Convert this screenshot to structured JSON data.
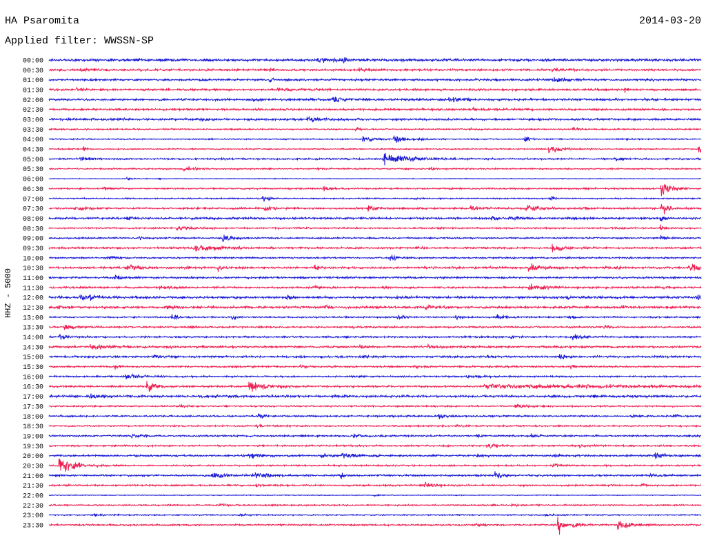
{
  "header": {
    "station": "HA Psaromita",
    "date": "2014-03-20",
    "filter": "Applied filter: WWSSN-SP"
  },
  "channel_label": "HHZ - 5000",
  "colors": {
    "trace_even": "#1a1ad6",
    "trace_odd": "#ee1f52",
    "background": "#ffffff",
    "text": "#000000"
  },
  "chart_data": {
    "type": "line",
    "rows": [
      {
        "time": "00:00",
        "noise": 800,
        "events": [
          [
            3.93,
            1400,
            0.4
          ],
          [
            7.26,
            1100,
            0.3
          ],
          [
            12.34,
            1800,
            1.0
          ],
          [
            13.45,
            1500,
            0.4
          ],
          [
            16.78,
            900,
            0.5
          ]
        ]
      },
      {
        "time": "00:30",
        "noise": 650,
        "events": [
          [
            1.4,
            1100,
            1.0
          ],
          [
            10.12,
            1300,
            0.5
          ],
          [
            14.24,
            1000,
            1.0
          ],
          [
            23.12,
            1000,
            1.0
          ]
        ]
      },
      {
        "time": "01:00",
        "noise": 650,
        "events": [
          [
            6.95,
            1200,
            0.4
          ],
          [
            10.12,
            3200,
            0.15
          ],
          [
            23.12,
            1500,
            1.0
          ],
          [
            27.4,
            1000,
            0.5
          ]
        ]
      },
      {
        "time": "01:30",
        "noise": 650,
        "events": [
          [
            1.24,
            1300,
            0.8
          ],
          [
            10.43,
            1300,
            1.2
          ],
          [
            26.45,
            2500,
            0.15
          ]
        ]
      },
      {
        "time": "02:00",
        "noise": 700,
        "events": [
          [
            9.32,
            1200,
            0.4
          ],
          [
            12.97,
            2600,
            0.6
          ],
          [
            18.36,
            1800,
            1.0
          ]
        ]
      },
      {
        "time": "02:30",
        "noise": 650,
        "events": [
          [
            19.32,
            1000,
            0.8
          ]
        ]
      },
      {
        "time": "03:00",
        "noise": 650,
        "events": [
          [
            3.14,
            900,
            0.5
          ],
          [
            6.95,
            1200,
            0.5
          ],
          [
            11.86,
            1800,
            1.2
          ]
        ]
      },
      {
        "time": "03:30",
        "noise": 450,
        "events": [
          [
            14.08,
            1300,
            0.3
          ],
          [
            19.32,
            900,
            0.4
          ],
          [
            24.07,
            1700,
            0.3
          ]
        ]
      },
      {
        "time": "04:00",
        "noise": 400,
        "events": [
          [
            14.4,
            2200,
            0.6
          ],
          [
            15.83,
            3300,
            0.5
          ],
          [
            16.94,
            1200,
            0.4
          ],
          [
            21.85,
            2800,
            0.25
          ],
          [
            26.55,
            1000,
            0.3
          ]
        ]
      },
      {
        "time": "04:30",
        "noise": 400,
        "events": [
          [
            1.55,
            2000,
            0.2
          ],
          [
            22.96,
            2800,
            0.7
          ],
          [
            29.84,
            3500,
            0.3
          ]
        ]
      },
      {
        "time": "05:00",
        "noise": 550,
        "events": [
          [
            1.4,
            1800,
            0.5
          ],
          [
            7.9,
            1000,
            0.3
          ],
          [
            15.35,
            4000,
            1.2
          ],
          [
            25.97,
            1800,
            0.4
          ]
        ]
      },
      {
        "time": "05:30",
        "noise": 450,
        "events": [
          [
            6.15,
            1200,
            1.0
          ],
          [
            12.34,
            900,
            0.5
          ],
          [
            17.57,
            2000,
            0.2
          ]
        ]
      },
      {
        "time": "06:00",
        "noise": 250,
        "events": [
          [
            3.55,
            1700,
            0.2
          ],
          [
            5.04,
            1300,
            0.2
          ]
        ]
      },
      {
        "time": "06:30",
        "noise": 500,
        "events": [
          [
            2.51,
            1500,
            0.3
          ],
          [
            12.59,
            2000,
            0.4
          ],
          [
            24.33,
            1000,
            0.3
          ],
          [
            28.13,
            5600,
            0.3
          ],
          [
            28.67,
            1800,
            0.4
          ]
        ]
      },
      {
        "time": "07:00",
        "noise": 400,
        "events": [
          [
            9.8,
            2800,
            0.3
          ],
          [
            16.78,
            1000,
            0.3
          ],
          [
            23.03,
            2500,
            0.2
          ]
        ]
      },
      {
        "time": "07:30",
        "noise": 600,
        "events": [
          [
            1.08,
            1800,
            0.8
          ],
          [
            9.9,
            2200,
            0.4
          ],
          [
            14.65,
            2500,
            0.5
          ],
          [
            19.32,
            2500,
            0.5
          ],
          [
            21.92,
            2800,
            0.6
          ],
          [
            24.55,
            1500,
            0.3
          ],
          [
            28.13,
            4800,
            0.3
          ]
        ]
      },
      {
        "time": "08:00",
        "noise": 650,
        "events": [
          [
            3.55,
            2000,
            0.3
          ],
          [
            20.27,
            1800,
            0.5
          ],
          [
            21.38,
            1500,
            0.4
          ],
          [
            24.07,
            1200,
            0.3
          ],
          [
            28.1,
            3500,
            0.2
          ]
        ]
      },
      {
        "time": "08:30",
        "noise": 500,
        "events": [
          [
            5.84,
            1500,
            1.0
          ],
          [
            17.73,
            900,
            0.4
          ],
          [
            25.82,
            1000,
            0.4
          ],
          [
            28.1,
            2500,
            0.2
          ]
        ]
      },
      {
        "time": "09:00",
        "noise": 500,
        "events": [
          [
            4.09,
            2500,
            0.2
          ],
          [
            7.96,
            3000,
            0.4
          ],
          [
            28.1,
            2500,
            0.2
          ]
        ]
      },
      {
        "time": "09:30",
        "noise": 600,
        "events": [
          [
            6.63,
            2500,
            1.4
          ],
          [
            16.87,
            1200,
            0.3
          ],
          [
            23.12,
            2500,
            0.7
          ]
        ]
      },
      {
        "time": "10:00",
        "noise": 500,
        "events": [
          [
            2.66,
            1500,
            0.5
          ],
          [
            15.67,
            2500,
            0.4
          ],
          [
            23.76,
            1200,
            0.4
          ]
        ]
      },
      {
        "time": "10:30",
        "noise": 650,
        "events": [
          [
            3.46,
            1800,
            1.0
          ],
          [
            6.15,
            1800,
            0.3
          ],
          [
            7.74,
            2200,
            0.3
          ],
          [
            12.18,
            2000,
            0.3
          ],
          [
            18.36,
            1200,
            0.4
          ],
          [
            22.01,
            2800,
            0.7
          ],
          [
            25.97,
            1500,
            0.4
          ],
          [
            29.4,
            3000,
            0.7
          ]
        ]
      },
      {
        "time": "11:00",
        "noise": 600,
        "events": [
          [
            2.98,
            1800,
            0.6
          ],
          [
            13.61,
            900,
            0.5
          ]
        ]
      },
      {
        "time": "11:30",
        "noise": 600,
        "events": [
          [
            5.04,
            1500,
            0.5
          ],
          [
            12.18,
            1100,
            0.5
          ],
          [
            15.35,
            1000,
            0.4
          ],
          [
            22.01,
            2200,
            1.0
          ],
          [
            28.19,
            1000,
            0.4
          ]
        ]
      },
      {
        "time": "12:00",
        "noise": 750,
        "events": [
          [
            1.4,
            2200,
            0.5
          ],
          [
            1.87,
            2000,
            0.4
          ],
          [
            10.91,
            2200,
            0.3
          ],
          [
            15.98,
            1200,
            0.4
          ],
          [
            23.76,
            1500,
            0.4
          ],
          [
            29.78,
            1800,
            0.3
          ]
        ]
      },
      {
        "time": "12:30",
        "noise": 750,
        "events": [
          [
            0.29,
            1800,
            0.5
          ],
          [
            5.36,
            1500,
            0.5
          ],
          [
            12.65,
            2000,
            0.3
          ],
          [
            17.25,
            1800,
            0.4
          ],
          [
            26.29,
            1200,
            0.4
          ]
        ]
      },
      {
        "time": "13:00",
        "noise": 500,
        "events": [
          [
            5.61,
            2500,
            0.3
          ],
          [
            8.4,
            3000,
            0.2
          ],
          [
            16.02,
            1800,
            0.4
          ],
          [
            18.68,
            1800,
            0.3
          ],
          [
            20.58,
            3000,
            0.4
          ],
          [
            23.91,
            1300,
            0.3
          ]
        ]
      },
      {
        "time": "13:30",
        "noise": 550,
        "events": [
          [
            0.67,
            1600,
            0.6
          ],
          [
            13.92,
            1000,
            0.4
          ],
          [
            25.5,
            1800,
            0.3
          ]
        ]
      },
      {
        "time": "14:00",
        "noise": 550,
        "events": [
          [
            0.44,
            1800,
            0.6
          ],
          [
            21.22,
            1500,
            0.3
          ],
          [
            24.01,
            2500,
            0.5
          ]
        ]
      },
      {
        "time": "14:30",
        "noise": 650,
        "events": [
          [
            1.87,
            2000,
            1.0
          ],
          [
            5.36,
            1200,
            0.4
          ],
          [
            14.24,
            1200,
            0.5
          ],
          [
            17.41,
            1500,
            0.8
          ]
        ]
      },
      {
        "time": "15:00",
        "noise": 650,
        "events": [
          [
            4.73,
            1800,
            0.5
          ],
          [
            14.24,
            1300,
            0.5
          ],
          [
            20.11,
            1500,
            0.4
          ],
          [
            23.44,
            2500,
            0.3
          ]
        ]
      },
      {
        "time": "15:30",
        "noise": 550,
        "events": [
          [
            3.01,
            2000,
            0.2
          ],
          [
            11.54,
            1500,
            0.5
          ],
          [
            16.78,
            1000,
            0.4
          ],
          [
            23.95,
            1500,
            0.3
          ]
        ]
      },
      {
        "time": "16:00",
        "noise": 500,
        "events": [
          [
            3.46,
            1800,
            1.0
          ],
          [
            14.24,
            1000,
            0.4
          ],
          [
            19.16,
            1200,
            0.8
          ]
        ]
      },
      {
        "time": "16:30",
        "noise": 600,
        "events": [
          [
            4.47,
            4500,
            0.4
          ],
          [
            9.17,
            3500,
            0.8
          ],
          [
            19.95,
            1400,
            12
          ]
        ]
      },
      {
        "time": "17:00",
        "noise": 750,
        "events": [
          [
            1.71,
            1600,
            0.8
          ],
          [
            7.58,
            1100,
            0.4
          ],
          [
            12.97,
            1600,
            0.4
          ],
          [
            25.02,
            1300,
            0.3
          ]
        ]
      },
      {
        "time": "17:30",
        "noise": 500,
        "events": [
          [
            5.99,
            1200,
            0.4
          ],
          [
            21.38,
            1500,
            0.8
          ]
        ]
      },
      {
        "time": "18:00",
        "noise": 550,
        "events": [
          [
            0.44,
            1200,
            0.3
          ],
          [
            9.58,
            2000,
            0.4
          ],
          [
            17.89,
            1600,
            0.3
          ],
          [
            26.77,
            1200,
            0.3
          ],
          [
            28.67,
            1800,
            0.3
          ]
        ]
      },
      {
        "time": "18:30",
        "noise": 500,
        "events": [
          [
            9.48,
            1000,
            0.4
          ],
          [
            18.68,
            1800,
            0.2
          ]
        ]
      },
      {
        "time": "19:00",
        "noise": 550,
        "events": [
          [
            3.77,
            1600,
            0.5
          ],
          [
            13.99,
            1800,
            0.3
          ],
          [
            19.63,
            1600,
            0.3
          ],
          [
            22.17,
            1600,
            0.3
          ]
        ]
      },
      {
        "time": "19:30",
        "noise": 550,
        "events": [
          [
            20.11,
            1500,
            0.6
          ],
          [
            24.39,
            1300,
            0.4
          ]
        ]
      },
      {
        "time": "20:00",
        "noise": 600,
        "events": [
          [
            9.17,
            2200,
            0.5
          ],
          [
            12.5,
            1500,
            0.4
          ],
          [
            13.45,
            2000,
            1.0
          ],
          [
            19.63,
            1500,
            0.4
          ],
          [
            23.12,
            1200,
            0.4
          ],
          [
            27.81,
            2500,
            0.5
          ]
        ]
      },
      {
        "time": "20:30",
        "noise": 500,
        "events": [
          [
            0.44,
            5500,
            0.8
          ],
          [
            23.12,
            1200,
            0.4
          ]
        ]
      },
      {
        "time": "21:00",
        "noise": 600,
        "events": [
          [
            7.42,
            2200,
            0.8
          ],
          [
            9.32,
            2500,
            1.0
          ],
          [
            13.38,
            2000,
            0.3
          ],
          [
            20.49,
            3500,
            0.3
          ],
          [
            27.62,
            2000,
            0.3
          ]
        ]
      },
      {
        "time": "21:30",
        "noise": 550,
        "events": [
          [
            9.48,
            1300,
            0.4
          ],
          [
            17.25,
            1500,
            1.0
          ],
          [
            27.24,
            1500,
            0.3
          ]
        ]
      },
      {
        "time": "22:00",
        "noise": 250,
        "events": [
          [
            14.87,
            600,
            0.5
          ]
        ]
      },
      {
        "time": "22:30",
        "noise": 450,
        "events": [
          [
            7.83,
            1500,
            0.3
          ],
          [
            10.18,
            1300,
            0.3
          ],
          [
            21.22,
            900,
            0.4
          ]
        ]
      },
      {
        "time": "23:00",
        "noise": 400,
        "events": [
          [
            2.03,
            1200,
            0.4
          ],
          [
            8.69,
            1000,
            0.4
          ],
          [
            22.8,
            1000,
            0.4
          ]
        ]
      },
      {
        "time": "23:30",
        "noise": 550,
        "events": [
          [
            19.63,
            1500,
            0.4
          ],
          [
            23.37,
            12000,
            0.15
          ],
          [
            24.07,
            1800,
            0.5
          ],
          [
            26.13,
            3500,
            0.6
          ]
        ]
      }
    ]
  }
}
